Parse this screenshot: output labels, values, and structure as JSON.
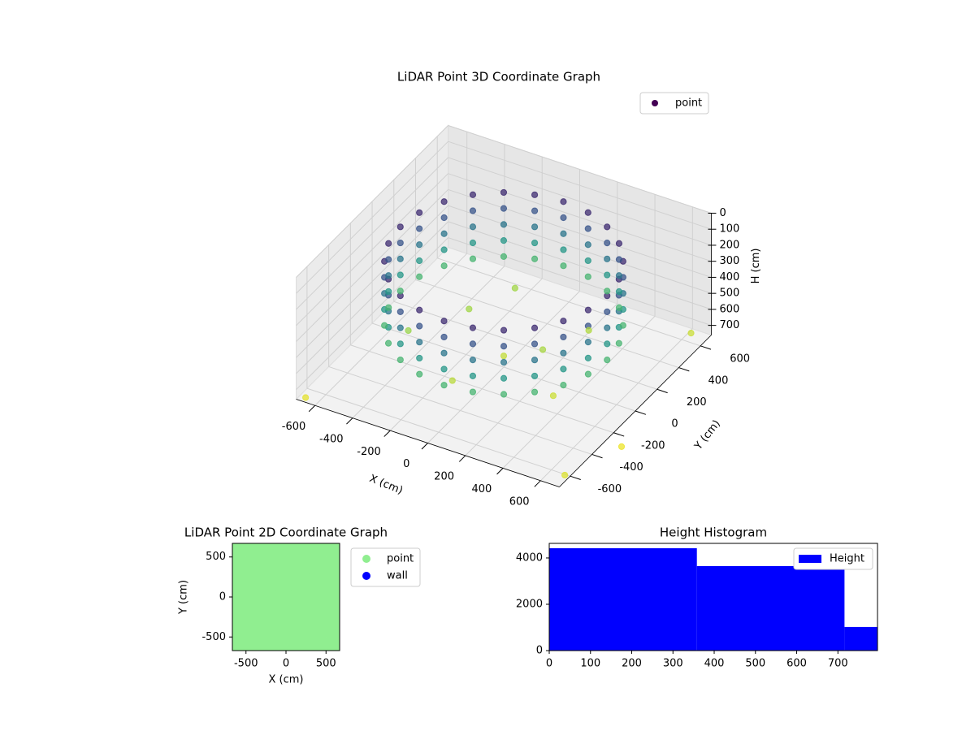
{
  "chart_data": [
    {
      "type": "scatter3d",
      "title": "LiDAR Point 3D Coordinate Graph",
      "xlabel": "X (cm)",
      "ylabel": "Y (cm)",
      "zlabel": "H (cm)",
      "xlim": [
        -700,
        700
      ],
      "ylim": [
        -700,
        700
      ],
      "zlim": [
        0,
        760
      ],
      "z_inverted": true,
      "xticks": [
        -600,
        -400,
        -200,
        0,
        200,
        400,
        600
      ],
      "yticks": [
        -600,
        -400,
        -200,
        0,
        200,
        400,
        600
      ],
      "zticks": [
        0,
        100,
        200,
        300,
        400,
        500,
        600,
        700
      ],
      "colormap": "viridis",
      "legend": "upper right",
      "series": [
        {
          "name": "point",
          "color": "#440154",
          "x": [
            550,
            531,
            476,
            389,
            275,
            142,
            0,
            -142,
            -275,
            -389,
            -476,
            -531,
            -550,
            -531,
            -476,
            -389,
            -275,
            -142,
            0,
            142,
            275,
            389,
            476,
            531,
            550,
            531,
            476,
            389,
            275,
            142,
            0,
            -142,
            -275,
            -389,
            -476,
            -531,
            -550,
            -531,
            -476,
            -389,
            -275,
            -142,
            0,
            142,
            275,
            389,
            476,
            531,
            550,
            531,
            476,
            389,
            275,
            142,
            0,
            -142,
            -275,
            -389,
            -476,
            -531,
            -550,
            -531,
            -476,
            -389,
            -275,
            -142,
            0,
            142,
            275,
            389,
            476,
            531,
            550,
            531,
            476,
            389,
            275,
            142,
            0,
            -142,
            -275,
            -389,
            -476,
            -531,
            -550,
            -531,
            -476,
            -389,
            -275,
            -142,
            0,
            142,
            275,
            389,
            476,
            531,
            550,
            531,
            476,
            389,
            275,
            142,
            0,
            -142,
            -275,
            -389,
            -476,
            -531,
            -550,
            -531,
            -476,
            -389,
            -275,
            -142,
            0,
            142,
            275,
            389,
            476,
            531,
            -300,
            -100,
            150,
            350,
            -450,
            0,
            250,
            -200,
            700,
            -650,
            650,
            800
          ],
          "y": [
            0,
            142,
            275,
            389,
            476,
            531,
            550,
            531,
            476,
            389,
            275,
            142,
            0,
            -142,
            -275,
            -389,
            -476,
            -531,
            -550,
            -531,
            -476,
            -389,
            -275,
            -142,
            0,
            142,
            275,
            389,
            476,
            531,
            550,
            531,
            476,
            389,
            275,
            142,
            0,
            -142,
            -275,
            -389,
            -476,
            -531,
            -550,
            -531,
            -476,
            -389,
            -275,
            -142,
            0,
            142,
            275,
            389,
            476,
            531,
            550,
            531,
            476,
            389,
            275,
            142,
            0,
            -142,
            -275,
            -389,
            -476,
            -531,
            -550,
            -531,
            -476,
            -389,
            -275,
            -142,
            0,
            142,
            275,
            389,
            476,
            531,
            550,
            531,
            476,
            389,
            275,
            142,
            0,
            -142,
            -275,
            -389,
            -476,
            -531,
            -550,
            -531,
            -476,
            -389,
            -275,
            -142,
            0,
            142,
            275,
            389,
            476,
            531,
            550,
            531,
            476,
            389,
            275,
            142,
            0,
            -142,
            -275,
            -389,
            -476,
            -531,
            -550,
            -531,
            -476,
            -389,
            -275,
            -142,
            200,
            -300,
            100,
            -150,
            -100,
            0,
            350,
            450,
            -650,
            -700,
            600,
            -300
          ],
          "z": [
            100,
            100,
            100,
            100,
            100,
            100,
            100,
            100,
            100,
            100,
            100,
            100,
            100,
            100,
            100,
            100,
            100,
            100,
            100,
            100,
            100,
            100,
            100,
            100,
            200,
            200,
            200,
            200,
            200,
            200,
            200,
            200,
            200,
            200,
            200,
            200,
            200,
            200,
            200,
            200,
            200,
            200,
            200,
            200,
            200,
            200,
            200,
            200,
            300,
            300,
            300,
            300,
            300,
            300,
            300,
            300,
            300,
            300,
            300,
            300,
            300,
            300,
            300,
            300,
            300,
            300,
            300,
            300,
            300,
            300,
            300,
            300,
            400,
            400,
            400,
            400,
            400,
            400,
            400,
            400,
            400,
            400,
            400,
            400,
            400,
            400,
            400,
            400,
            400,
            400,
            400,
            400,
            400,
            400,
            400,
            400,
            500,
            500,
            500,
            500,
            500,
            500,
            500,
            500,
            500,
            500,
            500,
            500,
            500,
            500,
            500,
            500,
            500,
            500,
            500,
            500,
            500,
            500,
            500,
            500,
            650,
            680,
            660,
            700,
            640,
            690,
            670,
            650,
            720,
            730,
            700,
            740
          ]
        }
      ]
    },
    {
      "type": "scatter",
      "title": "LiDAR Point 2D Coordinate Graph",
      "xlabel": "X (cm)",
      "ylabel": "Y (cm)",
      "xlim": [
        -670,
        670
      ],
      "ylim": [
        -670,
        670
      ],
      "xticks": [
        -500,
        0,
        500
      ],
      "yticks": [
        -500,
        0,
        500
      ],
      "legend": "outside right",
      "series": [
        {
          "name": "point",
          "color": "#90ee90",
          "x": [
            -600,
            -400,
            -200,
            0,
            200,
            400,
            600,
            -600,
            -400,
            -200,
            0,
            200,
            400,
            600,
            -600,
            -400,
            -200,
            0,
            200,
            400,
            600,
            -600,
            -400,
            -200,
            0,
            200,
            400,
            600,
            -600,
            -400,
            -200,
            0,
            200,
            400,
            600,
            -600,
            -400,
            -200,
            0,
            200,
            400,
            600,
            -600,
            -400,
            -200,
            0,
            200,
            400,
            600
          ],
          "y": [
            -600,
            -600,
            -600,
            -600,
            -600,
            -600,
            -600,
            -400,
            -400,
            -400,
            -400,
            -400,
            -400,
            -400,
            -200,
            -200,
            -200,
            -200,
            -200,
            -200,
            -200,
            0,
            0,
            0,
            0,
            0,
            0,
            0,
            200,
            200,
            200,
            200,
            200,
            200,
            200,
            400,
            400,
            400,
            400,
            400,
            400,
            400,
            600,
            600,
            600,
            600,
            600,
            600,
            600
          ]
        },
        {
          "name": "wall",
          "color": "#0000ff",
          "x": [],
          "y": []
        }
      ]
    },
    {
      "type": "histogram",
      "title": "Height Histogram",
      "color": "#0000ff",
      "legend": "upper right",
      "series_name": "Height",
      "bins": [
        0,
        358,
        716,
        796
      ],
      "counts": [
        4420,
        3650,
        1020
      ],
      "xlim": [
        0,
        796
      ],
      "ylim": [
        0,
        4630
      ],
      "xticks": [
        0,
        100,
        200,
        300,
        400,
        500,
        600,
        700
      ],
      "yticks": [
        0,
        2000,
        4000
      ]
    }
  ]
}
